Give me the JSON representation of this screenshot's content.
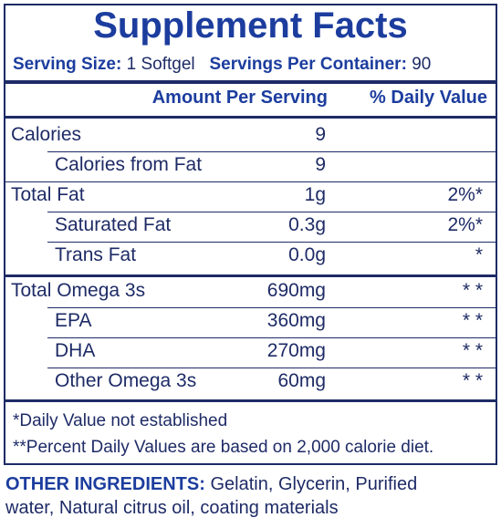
{
  "header": {
    "title": "Supplement Facts",
    "serving_size_label": "Serving Size:",
    "serving_size": "1 Softgel",
    "servings_label": "Servings Per Container:",
    "servings": "90"
  },
  "table": {
    "columns": [
      "Amount Per Serving",
      "% Daily Value"
    ],
    "rows": [
      {
        "name": "Calories",
        "amount": "9",
        "dv": null,
        "indent": false
      },
      {
        "name": "Calories from Fat",
        "amount": "9",
        "dv": null,
        "indent": true
      },
      {
        "name": "Total Fat",
        "amount": "1g",
        "dv": "2%*",
        "indent": false
      },
      {
        "name": "Saturated Fat",
        "amount": "0.3g",
        "dv": "2%*",
        "indent": true
      },
      {
        "name": "Trans Fat",
        "amount": "0.0g",
        "dv": "*",
        "indent": true
      },
      {
        "name": "Total Omega 3s",
        "amount": "690mg",
        "dv": "* *",
        "indent": false
      },
      {
        "name": "EPA",
        "amount": "360mg",
        "dv": "* *",
        "indent": true
      },
      {
        "name": "DHA",
        "amount": "270mg",
        "dv": "* *",
        "indent": true
      },
      {
        "name": "Other Omega 3s",
        "amount": "60mg",
        "dv": "* *",
        "indent": true
      }
    ]
  },
  "footnotes": [
    "*Daily Value not established",
    "**Percent Daily Values are based on 2,000 calorie diet."
  ],
  "ingredients": {
    "label": "OTHER INGREDIENTS:",
    "text_line1": "Gelatin, Glycerin, Purified",
    "text_line2": "water, Natural citrus oil, coating materials"
  }
}
